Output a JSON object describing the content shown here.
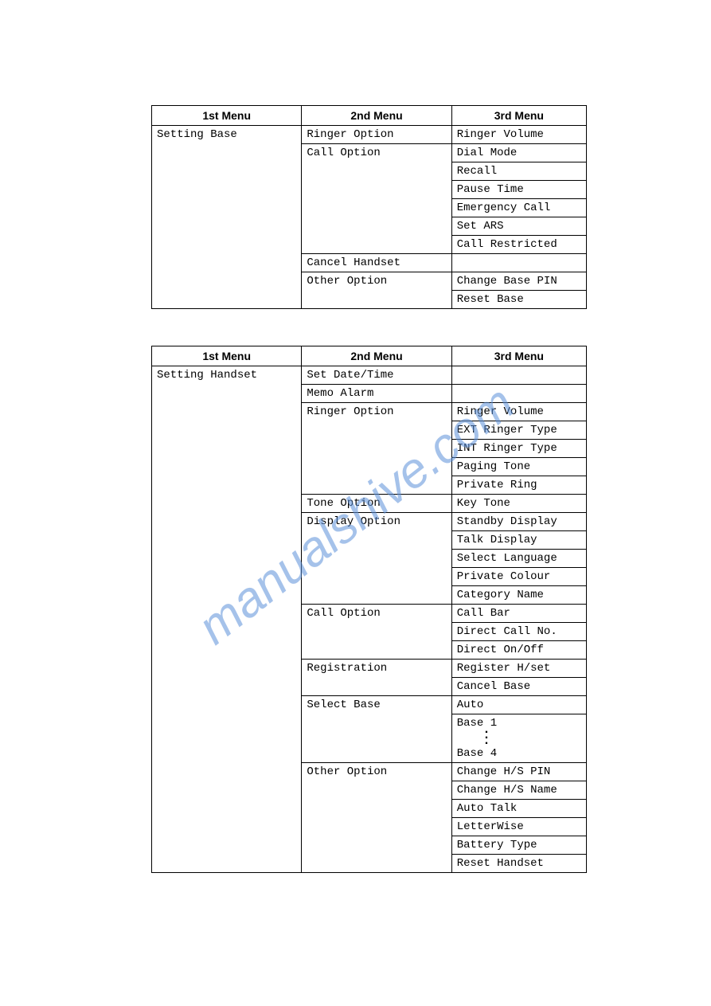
{
  "headers": {
    "col1": "1st Menu",
    "col2": "2nd Menu",
    "col3": "3rd Menu"
  },
  "table1": {
    "col1": "Setting Base",
    "groups": [
      {
        "col2": "Ringer Option",
        "col3": [
          "Ringer Volume"
        ]
      },
      {
        "col2": "Call Option",
        "col3": [
          "Dial Mode",
          "Recall",
          "Pause Time",
          "Emergency Call",
          "Set ARS",
          "Call Restricted"
        ]
      },
      {
        "col2": "Cancel Handset",
        "col3": [
          ""
        ]
      },
      {
        "col2": "Other Option",
        "col3": [
          "Change Base PIN",
          "Reset Base"
        ]
      }
    ]
  },
  "table2": {
    "col1": "Setting Handset",
    "groups": [
      {
        "col2": "Set Date/Time",
        "col3": [
          ""
        ]
      },
      {
        "col2": "Memo Alarm",
        "col3": [
          ""
        ]
      },
      {
        "col2": "Ringer Option",
        "col3": [
          "Ringer Volume",
          "EXT Ringer Type",
          "INT Ringer Type",
          "Paging Tone",
          "Private Ring"
        ]
      },
      {
        "col2": "Tone Option",
        "col3": [
          "Key Tone"
        ]
      },
      {
        "col2": "Display Option",
        "col3": [
          "Standby Display",
          "Talk Display",
          "Select Language",
          "Private Colour",
          "Category Name"
        ]
      },
      {
        "col2": "Call Option",
        "col3": [
          "Call Bar",
          "Direct Call No.",
          "Direct On/Off"
        ]
      },
      {
        "col2": "Registration",
        "col3": [
          "Register H/set",
          "Cancel Base"
        ]
      },
      {
        "col2": "Select Base",
        "col3": [
          "Auto"
        ],
        "special": {
          "top": "Base 1",
          "bot": "Base 4"
        }
      },
      {
        "col2": "Other Option",
        "col3": [
          "Change H/S PIN",
          "Change H/S Name",
          "Auto Talk",
          "LetterWise",
          "Battery Type",
          "Reset Handset"
        ]
      }
    ]
  },
  "watermark": {
    "text": "manualshive.com",
    "color": "#5b8fd9",
    "opacity": 0.55,
    "fontsize": 62,
    "angle": -38
  },
  "colors": {
    "border": "#000000",
    "light_border": "#bbbbbb",
    "background": "#ffffff",
    "text": "#000000"
  }
}
